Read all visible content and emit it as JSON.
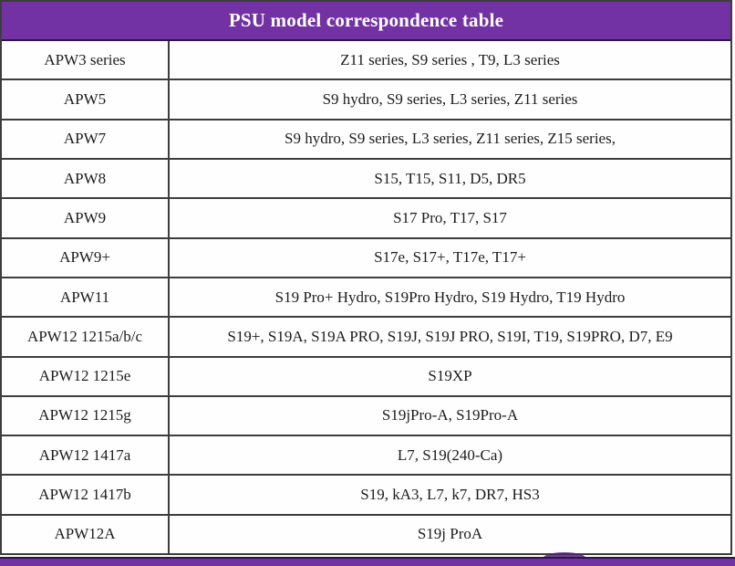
{
  "header": {
    "title": "PSU model correspondence table"
  },
  "colors": {
    "header_bg": "#7232a3",
    "header_text": "#ffffff",
    "bottom_bar": "#7232a3",
    "border": "#3d3d3d",
    "cell_text": "#1c1c1c"
  },
  "table": {
    "rows": [
      {
        "model": "APW3 series",
        "miners": "Z11 series, S9 series , T9, L3 series"
      },
      {
        "model": "APW5",
        "miners": "S9 hydro, S9 series, L3 series, Z11 series"
      },
      {
        "model": "APW7",
        "miners": "S9 hydro, S9 series, L3 series, Z11 series, Z15 series,"
      },
      {
        "model": "APW8",
        "miners": "S15, T15, S11, D5, DR5"
      },
      {
        "model": "APW9",
        "miners": "S17 Pro, T17, S17"
      },
      {
        "model": "APW9+",
        "miners": "S17e, S17+, T17e, T17+"
      },
      {
        "model": "APW11",
        "miners": "S19 Pro+ Hydro, S19Pro Hydro, S19 Hydro, T19 Hydro"
      },
      {
        "model": "APW12 1215a/b/c",
        "miners": "S19+, S19A, S19A PRO, S19J, S19J PRO, S19I, T19, S19PRO, D7, E9"
      },
      {
        "model": "APW12 1215e",
        "miners": "S19XP"
      },
      {
        "model": "APW12 1215g",
        "miners": "S19jPro-A, S19Pro-A"
      },
      {
        "model": "APW12 1417a",
        "miners": "L7, S19(240-Ca)"
      },
      {
        "model": "APW12 1417b",
        "miners": "S19, kA3, L7, k7, DR7, HS3"
      },
      {
        "model": "APW12A",
        "miners": "S19j ProA"
      }
    ]
  }
}
